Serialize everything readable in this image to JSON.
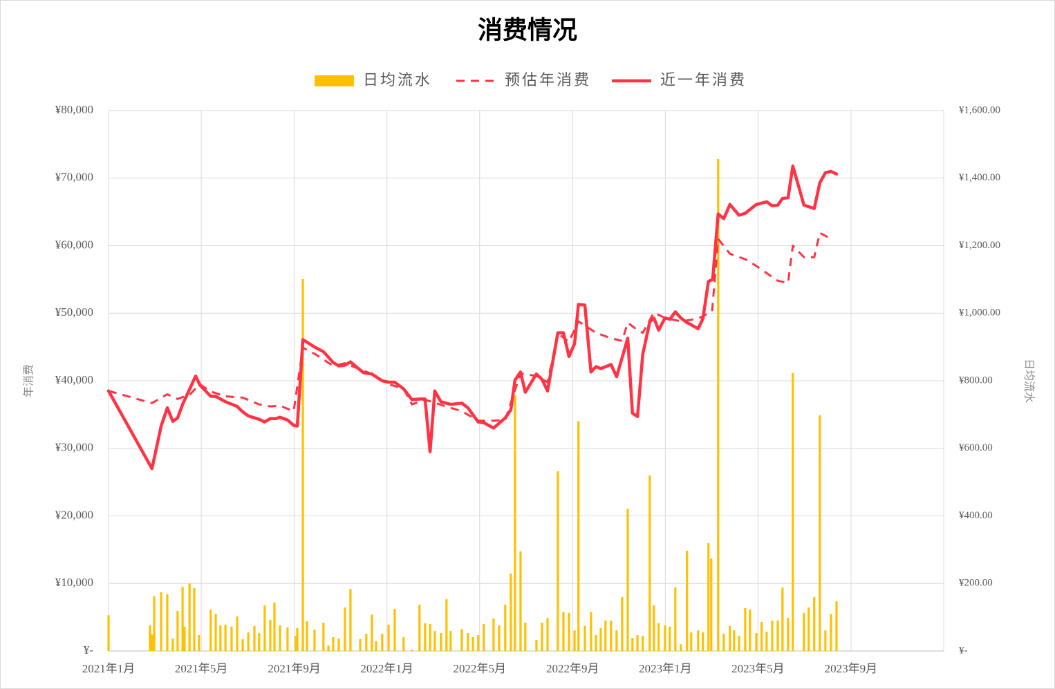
{
  "chart_data": {
    "type": "combo",
    "title": "消费情况",
    "ylabel": "年消费",
    "y2label": "日均流水",
    "xlim": [
      2021,
      2024
    ],
    "xticks": [
      {
        "value": 2021,
        "label": "2021年1月"
      },
      {
        "value": 2021.333,
        "label": "2021年5月"
      },
      {
        "value": 2021.667,
        "label": "2021年9月"
      },
      {
        "value": 2022,
        "label": "2022年1月"
      },
      {
        "value": 2022.333,
        "label": "2022年5月"
      },
      {
        "value": 2022.667,
        "label": "2022年9月"
      },
      {
        "value": 2023,
        "label": "2023年1月"
      },
      {
        "value": 2023.333,
        "label": "2023年5月"
      },
      {
        "value": 2023.667,
        "label": "2023年9月"
      }
    ],
    "ylim": [
      0,
      80000
    ],
    "yticks": [
      {
        "value": 0,
        "label": "¥-"
      },
      {
        "value": 10000,
        "label": "¥10,000"
      },
      {
        "value": 20000,
        "label": "¥20,000"
      },
      {
        "value": 30000,
        "label": "¥30,000"
      },
      {
        "value": 40000,
        "label": "¥40,000"
      },
      {
        "value": 50000,
        "label": "¥50,000"
      },
      {
        "value": 60000,
        "label": "¥60,000"
      },
      {
        "value": 70000,
        "label": "¥70,000"
      },
      {
        "value": 80000,
        "label": "¥80,000"
      }
    ],
    "y2lim": [
      0,
      1600
    ],
    "y2ticks": [
      {
        "value": 0,
        "label": "¥-"
      },
      {
        "value": 200,
        "label": "¥200.00"
      },
      {
        "value": 400,
        "label": "¥400.00"
      },
      {
        "value": 600,
        "label": "¥600.00"
      },
      {
        "value": 800,
        "label": "¥800.00"
      },
      {
        "value": 1000,
        "label": "¥1,000.00"
      },
      {
        "value": 1200,
        "label": "¥1,200.00"
      },
      {
        "value": 1400,
        "label": "¥1,400.00"
      },
      {
        "value": 1600,
        "label": "¥1,600.00"
      }
    ],
    "grid": true,
    "legend": "top",
    "series": [
      {
        "name": "日均流水",
        "type": "bar",
        "axis": "y2",
        "color": "#FFC000",
        "x": [
          2021.0,
          2021.149,
          2021.156,
          2021.164,
          2021.189,
          2021.211,
          2021.231,
          2021.248,
          2021.266,
          2021.273,
          2021.291,
          2021.308,
          2021.325,
          2021.367,
          2021.385,
          2021.402,
          2021.42,
          2021.442,
          2021.462,
          2021.482,
          2021.502,
          2021.524,
          2021.541,
          2021.561,
          2021.581,
          2021.596,
          2021.616,
          2021.643,
          2021.673,
          2021.678,
          2021.698,
          2021.713,
          2021.74,
          2021.772,
          2021.79,
          2021.807,
          2021.827,
          2021.849,
          2021.869,
          2021.904,
          2021.926,
          2021.946,
          2021.961,
          2021.983,
          2022.006,
          2022.028,
          2022.06,
          2022.09,
          2022.117,
          2022.137,
          2022.155,
          2022.172,
          2022.194,
          2022.214,
          2022.229,
          2022.269,
          2022.291,
          2022.309,
          2022.328,
          2022.348,
          2022.383,
          2022.403,
          2022.425,
          2022.445,
          2022.46,
          2022.48,
          2022.497,
          2022.537,
          2022.557,
          2022.577,
          2022.614,
          2022.634,
          2022.654,
          2022.674,
          2022.688,
          2022.711,
          2022.733,
          2022.751,
          2022.768,
          2022.785,
          2022.805,
          2022.825,
          2022.845,
          2022.865,
          2022.882,
          2022.9,
          2022.919,
          2022.944,
          2022.959,
          2022.976,
          2022.999,
          2023.016,
          2023.036,
          2023.056,
          2023.078,
          2023.093,
          2023.118,
          2023.135,
          2023.155,
          2023.165,
          2023.19,
          2023.21,
          2023.232,
          2023.247,
          2023.265,
          2023.287,
          2023.304,
          2023.327,
          2023.346,
          2023.364,
          2023.384,
          2023.404,
          2023.421,
          2023.441,
          2023.458,
          2023.498,
          2023.515,
          2023.535,
          2023.555,
          2023.575,
          2023.595,
          2023.615
        ],
        "values": [
          106,
          76,
          49,
          162,
          174,
          168,
          37,
          119,
          190,
          72,
          200,
          186,
          47,
          123,
          110,
          76,
          78,
          72,
          102,
          35,
          55,
          74,
          53,
          135,
          92,
          143,
          76,
          70,
          45,
          68,
          1101,
          88,
          63,
          84,
          16,
          41,
          37,
          129,
          184,
          35,
          51,
          108,
          29,
          51,
          78,
          125,
          41,
          4,
          137,
          82,
          80,
          59,
          53,
          153,
          59,
          65,
          53,
          41,
          47,
          80,
          96,
          76,
          137,
          229,
          757,
          295,
          84,
          33,
          84,
          98,
          532,
          115,
          113,
          61,
          681,
          74,
          115,
          47,
          68,
          90,
          90,
          61,
          160,
          421,
          39,
          47,
          45,
          520,
          135,
          82,
          76,
          72,
          188,
          20,
          297,
          55,
          61,
          55,
          319,
          274,
          1457,
          51,
          74,
          61,
          45,
          127,
          123,
          53,
          86,
          57,
          90,
          90,
          188,
          98,
          823,
          113,
          129,
          160,
          698,
          61,
          110,
          147
        ]
      },
      {
        "name": "预估年消费",
        "type": "line",
        "dashed": true,
        "color": "#FF3344",
        "x": [
          2021.0,
          2021.156,
          2021.211,
          2021.248,
          2021.293,
          2021.328,
          2021.367,
          2021.42,
          2021.482,
          2021.541,
          2021.581,
          2021.616,
          2021.665,
          2021.698,
          2021.74,
          2021.807,
          2021.849,
          2021.946,
          2022.006,
          2022.06,
          2022.09,
          2022.137,
          2022.229,
          2022.269,
          2022.328,
          2022.383,
          2022.425,
          2022.48,
          2022.537,
          2022.577,
          2022.614,
          2022.654,
          2022.688,
          2022.751,
          2022.805,
          2022.845,
          2022.865,
          2022.9,
          2022.919,
          2022.959,
          2022.999,
          2023.056,
          2023.118,
          2023.168,
          2023.19,
          2023.232,
          2023.287,
          2023.327,
          2023.404,
          2023.441,
          2023.458,
          2023.498,
          2023.535,
          2023.555,
          2023.595
        ],
        "values": [
          38500,
          36700,
          38000,
          37300,
          38000,
          39500,
          38400,
          37700,
          37500,
          36500,
          36200,
          36300,
          35500,
          44900,
          44000,
          42200,
          42600,
          41000,
          39500,
          38800,
          36500,
          37200,
          36000,
          35500,
          34100,
          34100,
          34200,
          41100,
          40700,
          39800,
          47000,
          45800,
          48800,
          47100,
          46300,
          45900,
          48600,
          47500,
          47100,
          50100,
          49300,
          48800,
          49200,
          50300,
          61000,
          58800,
          58000,
          57000,
          54800,
          54500,
          60000,
          58300,
          58300,
          61900,
          61000
        ]
      },
      {
        "name": "近一年消费",
        "type": "line",
        "color": "#FF3344",
        "x": [
          2021.0,
          2021.156,
          2021.189,
          2021.211,
          2021.231,
          2021.248,
          2021.266,
          2021.313,
          2021.328,
          2021.367,
          2021.385,
          2021.42,
          2021.462,
          2021.482,
          2021.502,
          2021.541,
          2021.561,
          2021.581,
          2021.601,
          2021.616,
          2021.643,
          2021.665,
          2021.678,
          2021.698,
          2021.713,
          2021.74,
          2021.772,
          2021.807,
          2021.827,
          2021.849,
          2021.869,
          2021.889,
          2021.916,
          2021.946,
          2021.983,
          2022.006,
          2022.028,
          2022.06,
          2022.09,
          2022.117,
          2022.137,
          2022.155,
          2022.172,
          2022.194,
          2022.229,
          2022.269,
          2022.291,
          2022.328,
          2022.348,
          2022.383,
          2022.425,
          2022.445,
          2022.46,
          2022.48,
          2022.497,
          2022.537,
          2022.557,
          2022.577,
          2022.614,
          2022.634,
          2022.654,
          2022.674,
          2022.688,
          2022.711,
          2022.733,
          2022.751,
          2022.768,
          2022.805,
          2022.825,
          2022.865,
          2022.882,
          2022.9,
          2022.919,
          2022.944,
          2022.959,
          2022.976,
          2022.999,
          2023.016,
          2023.036,
          2023.056,
          2023.078,
          2023.093,
          2023.118,
          2023.135,
          2023.155,
          2023.17,
          2023.19,
          2023.21,
          2023.232,
          2023.265,
          2023.287,
          2023.327,
          2023.364,
          2023.384,
          2023.404,
          2023.421,
          2023.441,
          2023.458,
          2023.498,
          2023.535,
          2023.555,
          2023.575,
          2023.595,
          2023.615
        ],
        "values": [
          38500,
          27000,
          33300,
          36000,
          34000,
          34500,
          36500,
          40700,
          39400,
          37700,
          37700,
          36900,
          36200,
          35400,
          34800,
          34300,
          33900,
          34400,
          34400,
          34600,
          34200,
          33400,
          33300,
          46100,
          45700,
          45000,
          44300,
          42700,
          42200,
          42300,
          42800,
          42100,
          41200,
          41000,
          40000,
          39800,
          39800,
          38800,
          37200,
          37300,
          37300,
          29500,
          38500,
          36900,
          36500,
          36700,
          36000,
          33900,
          33800,
          33000,
          34500,
          35700,
          40100,
          41300,
          38300,
          41000,
          40200,
          38500,
          47100,
          47100,
          43600,
          45500,
          51300,
          51200,
          41300,
          42100,
          41800,
          42400,
          40600,
          46300,
          35200,
          34700,
          43900,
          48700,
          49300,
          47500,
          49300,
          49100,
          50200,
          49300,
          48600,
          48300,
          47700,
          49200,
          54700,
          55000,
          64700,
          64000,
          66100,
          64500,
          64800,
          66100,
          66500,
          65900,
          66000,
          67000,
          67100,
          71800,
          66000,
          65500,
          69300,
          70800,
          71000,
          70600
        ]
      }
    ]
  }
}
